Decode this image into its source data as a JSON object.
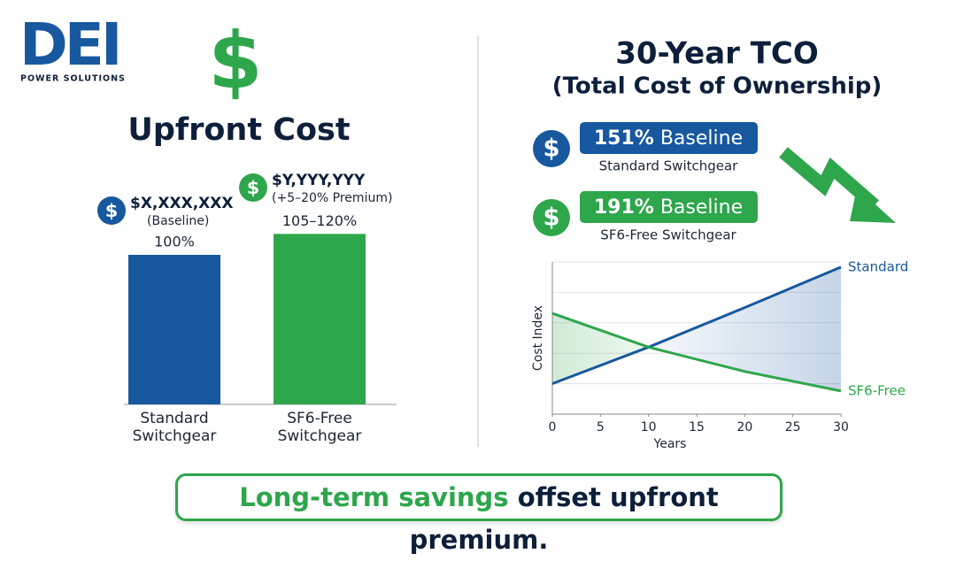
{
  "logo": {
    "title": "DEI",
    "subtitle": "POWER SOLUTIONS"
  },
  "currency_icon": "$",
  "chart_data": [
    {
      "type": "bar",
      "title": "Upfront Cost",
      "categories": [
        "Standard Switchgear",
        "SF6-Free Switchgear"
      ],
      "values": [
        100,
        114
      ],
      "value_labels": [
        "100%",
        "105–120%"
      ],
      "colors": [
        "#17589f",
        "#2ea64c"
      ],
      "annotations": [
        {
          "price": "$X,XXX,XXX",
          "note": "(Baseline)",
          "color": "#17589f"
        },
        {
          "price": "$Y,YYY,YYY",
          "note": "(+5–20% Premium)",
          "color": "#2ea64c"
        }
      ]
    },
    {
      "type": "line",
      "title": "30-Year TCO",
      "subtitle": "(Total Cost of Ownership)",
      "x_label": "Years",
      "y_label": "Cost Index",
      "xlim": [
        0,
        30
      ],
      "xticks": [
        0,
        5,
        10,
        15,
        20,
        25,
        30
      ],
      "ylim": [
        0,
        5
      ],
      "ygrid": [
        1,
        2,
        3,
        4
      ],
      "series": [
        {
          "name": "Standard",
          "color": "#17589f",
          "x": [
            0,
            10,
            20,
            30
          ],
          "values": [
            1,
            2.2,
            3.5,
            4.83
          ]
        },
        {
          "name": "SF6-Free",
          "color": "#2ea64c",
          "x": [
            0,
            10,
            20,
            30
          ],
          "values": [
            3.31,
            2.2,
            1.4,
            0.76
          ]
        }
      ],
      "callouts": [
        {
          "percent": "151%",
          "label": "Baseline",
          "caption": "Standard Switchgear",
          "color": "#17589f"
        },
        {
          "percent": "191%",
          "label": "Baseline",
          "caption": "SF6-Free Switchgear",
          "color": "#2ea64c"
        }
      ]
    }
  ],
  "footer": {
    "highlight": "Long-term savings",
    "text": "offset upfront premium."
  }
}
